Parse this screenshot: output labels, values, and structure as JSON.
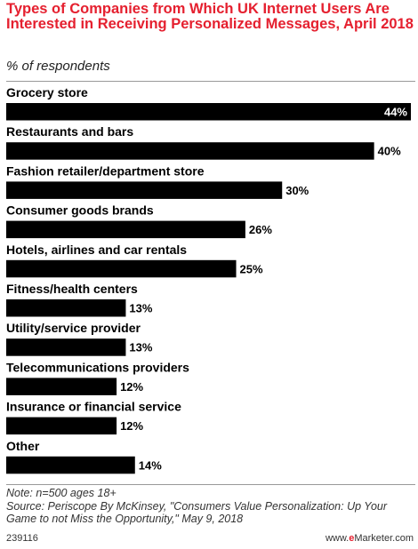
{
  "header": {
    "title": "Types of Companies from Which UK Internet Users Are Interested in Receiving Personalized Messages, April 2018",
    "subtitle": "% of respondents"
  },
  "notes": {
    "note": "Note: n=500 ages 18+",
    "source": "Source: Periscope By McKinsey, \"Consumers Value Personalization: Up Your Game to not Miss the Opportunity,\" May 9, 2018"
  },
  "footer": {
    "chart_id": "239116",
    "brand_prefix": "www.",
    "brand_e": "e",
    "brand_suffix": "Marketer.com"
  },
  "colors": {
    "bar": "#000000",
    "title": "#e5202f",
    "value_inside": "#ffffff",
    "value_outside": "#000000"
  },
  "chart_data": {
    "type": "bar",
    "orientation": "horizontal",
    "categories": [
      "Grocery store",
      "Restaurants and bars",
      "Fashion retailer/department store",
      "Consumer goods brands",
      "Hotels, airlines and car rentals",
      "Fitness/health centers",
      "Utility/service provider",
      "Telecommunications providers",
      "Insurance or financial service",
      "Other"
    ],
    "values": [
      44,
      40,
      30,
      26,
      25,
      13,
      13,
      12,
      12,
      14
    ],
    "value_labels": [
      "44%",
      "40%",
      "30%",
      "26%",
      "25%",
      "13%",
      "13%",
      "12%",
      "12%",
      "14%"
    ],
    "xlim": [
      0,
      44
    ],
    "grid": false,
    "legend": "none"
  }
}
